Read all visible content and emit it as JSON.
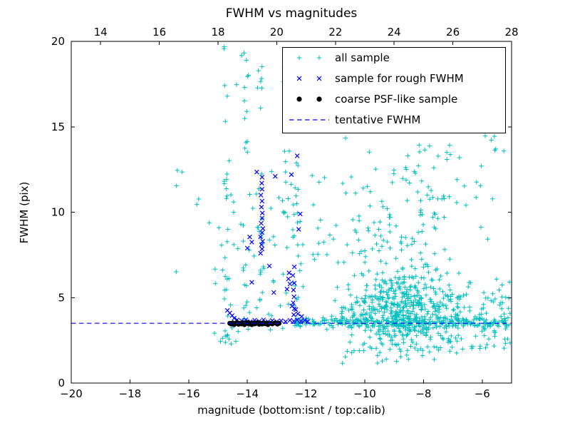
{
  "figure": {
    "title": "FWHM vs magnitudes",
    "xlabel": "magnitude (bottom:isnt / top:calib)",
    "ylabel": "FWHM (pix)"
  },
  "chart_data": {
    "type": "scatter",
    "title": "FWHM vs magnitudes",
    "xlabel": "magnitude (bottom:isnt / top:calib)",
    "ylabel": "FWHM (pix)",
    "xlim": [
      -20,
      -5
    ],
    "ylim": [
      0,
      20
    ],
    "top_xlim": [
      13,
      28
    ],
    "xticks": [
      -20,
      -18,
      -16,
      -14,
      -12,
      -10,
      -8,
      -6
    ],
    "top_xticks": [
      14,
      16,
      18,
      20,
      22,
      24,
      26,
      28
    ],
    "yticks": [
      0,
      5,
      10,
      15,
      20
    ],
    "grid": false,
    "tentative_fwhm": 3.5,
    "legend": {
      "position": "upper right",
      "entries": [
        {
          "label": "all sample",
          "marker": "plus",
          "color": "#00bfbf"
        },
        {
          "label": "sample for rough FWHM",
          "marker": "x",
          "color": "#0000ff"
        },
        {
          "label": "coarse PSF-like sample",
          "marker": "dot",
          "color": "#000000"
        },
        {
          "label": "tentative FWHM",
          "marker": "dashed-line",
          "color": "#0000ff"
        }
      ]
    },
    "lines": [
      {
        "name": "tentative FWHM",
        "style": "dashed",
        "color": "#0000ff",
        "y": 3.5
      }
    ],
    "series": [
      {
        "name": "all sample",
        "marker": "plus",
        "color": "#00bfbf",
        "clusters": [
          {
            "n": 500,
            "x": {
              "type": "gauss",
              "mu": -8.8,
              "sd": 1.0,
              "min": -11.4,
              "max": -6.1
            },
            "y": {
              "type": "gauss",
              "mu": 4.3,
              "sd": 1.2,
              "min": 1.3,
              "max": 9.8
            }
          },
          {
            "n": 240,
            "x": {
              "type": "uniform",
              "min": -12.4,
              "max": -5.05
            },
            "y": {
              "type": "gauss",
              "mu": 3.55,
              "sd": 0.15,
              "min": 3.2,
              "max": 4.0
            }
          },
          {
            "n": 120,
            "x": {
              "type": "gauss",
              "mu": -9.2,
              "sd": 1.3,
              "min": -11.9,
              "max": -6.3
            },
            "y": {
              "type": "gauss",
              "mu": 9.5,
              "sd": 2.3,
              "min": 7.0,
              "max": 16.8
            }
          },
          {
            "n": 70,
            "x": {
              "type": "uniform",
              "min": -15.15,
              "max": -12.1
            },
            "y": {
              "type": "gauss",
              "mu": 6.5,
              "sd": 3.2,
              "min": 2.0,
              "max": 15.5
            }
          },
          {
            "n": 20,
            "x": {
              "type": "gauss",
              "mu": -14.75,
              "sd": 0.05,
              "min": -14.9,
              "max": -14.6
            },
            "y": {
              "type": "uniform",
              "min": 2.6,
              "max": 19.6
            }
          },
          {
            "n": 12,
            "x": {
              "type": "gauss",
              "mu": -14.05,
              "sd": 0.06,
              "min": -14.2,
              "max": -13.9
            },
            "y": {
              "type": "uniform",
              "min": 3.2,
              "max": 17.5
            }
          },
          {
            "n": 16,
            "x": {
              "type": "gauss",
              "mu": -13.55,
              "sd": 0.05,
              "min": -13.68,
              "max": -13.42
            },
            "y": {
              "type": "uniform",
              "min": 4.0,
              "max": 19.4
            }
          },
          {
            "n": 14,
            "x": {
              "type": "gauss",
              "mu": -12.68,
              "sd": 0.06,
              "min": -12.82,
              "max": -12.54
            },
            "y": {
              "type": "uniform",
              "min": 3.8,
              "max": 19.2
            }
          },
          {
            "n": 18,
            "x": {
              "type": "gauss",
              "mu": -12.35,
              "sd": 0.07,
              "min": -12.5,
              "max": -12.2
            },
            "y": {
              "type": "uniform",
              "min": 3.8,
              "max": 13.5
            }
          },
          {
            "n": 7,
            "x": {
              "type": "uniform",
              "min": -16.6,
              "max": -15.2
            },
            "y": {
              "type": "uniform",
              "min": 6.5,
              "max": 15.5
            }
          },
          {
            "n": 9,
            "x": {
              "type": "uniform",
              "min": -15.3,
              "max": -13.1
            },
            "y": {
              "type": "uniform",
              "min": 16.2,
              "max": 19.7
            }
          },
          {
            "n": 120,
            "x": {
              "type": "uniform",
              "min": -7.6,
              "max": -5.05
            },
            "y": {
              "type": "gauss",
              "mu": 3.8,
              "sd": 1.1,
              "min": 1.7,
              "max": 8.2
            }
          },
          {
            "n": 28,
            "x": {
              "type": "uniform",
              "min": -8.2,
              "max": -5.2
            },
            "y": {
              "type": "uniform",
              "min": 8.4,
              "max": 14.6
            }
          },
          {
            "n": 26,
            "x": {
              "type": "uniform",
              "min": -10.8,
              "max": -6.0
            },
            "y": {
              "type": "uniform",
              "min": 1.1,
              "max": 2.3
            }
          },
          {
            "n": 12,
            "x": {
              "type": "uniform",
              "min": -10.9,
              "max": -8.1
            },
            "y": {
              "type": "uniform",
              "min": 15.8,
              "max": 19.7
            }
          },
          {
            "n": 7,
            "x": {
              "type": "uniform",
              "min": -15.05,
              "max": -14.2
            },
            "y": {
              "type": "uniform",
              "min": 2.2,
              "max": 3.3
            }
          }
        ]
      },
      {
        "name": "sample for rough FWHM",
        "marker": "x",
        "color": "#0000ff",
        "points": [
          [
            -13.55,
            7.6
          ],
          [
            -13.5,
            7.85
          ],
          [
            -13.52,
            8.1
          ],
          [
            -13.48,
            8.3
          ],
          [
            -13.55,
            8.55
          ],
          [
            -13.5,
            8.8
          ],
          [
            -13.47,
            9.05
          ],
          [
            -13.53,
            9.35
          ],
          [
            -13.5,
            9.65
          ],
          [
            -13.49,
            9.95
          ],
          [
            -13.52,
            10.3
          ],
          [
            -13.5,
            10.65
          ],
          [
            -13.54,
            11.0
          ],
          [
            -13.5,
            11.35
          ],
          [
            -13.51,
            11.7
          ],
          [
            -13.5,
            12.05
          ],
          [
            -13.68,
            12.35
          ],
          [
            -13.92,
            8.55
          ],
          [
            -13.85,
            8.25
          ],
          [
            -14.0,
            7.9
          ],
          [
            -12.42,
            4.0
          ],
          [
            -12.4,
            4.35
          ],
          [
            -12.44,
            4.7
          ],
          [
            -12.41,
            5.05
          ],
          [
            -12.43,
            5.45
          ],
          [
            -12.4,
            5.85
          ],
          [
            -12.45,
            6.3
          ],
          [
            -12.4,
            6.8
          ],
          [
            -12.6,
            6.1
          ],
          [
            -12.55,
            5.8
          ],
          [
            -12.65,
            5.5
          ],
          [
            -12.58,
            6.45
          ],
          [
            -12.3,
            13.3
          ],
          [
            -12.5,
            12.2
          ],
          [
            -13.05,
            12.1
          ],
          [
            -12.2,
            9.9
          ],
          [
            -12.25,
            9.0
          ],
          [
            -14.68,
            4.25
          ],
          [
            -14.6,
            4.1
          ],
          [
            -14.52,
            3.95
          ],
          [
            -14.45,
            3.8
          ],
          [
            -14.35,
            3.7
          ],
          [
            -14.2,
            3.65
          ],
          [
            -14.05,
            3.7
          ],
          [
            -13.9,
            3.6
          ],
          [
            -13.75,
            3.68
          ],
          [
            -13.6,
            3.62
          ],
          [
            -13.45,
            3.7
          ],
          [
            -13.3,
            3.6
          ],
          [
            -13.15,
            3.66
          ],
          [
            -13.0,
            3.6
          ],
          [
            -12.85,
            3.65
          ],
          [
            -12.7,
            3.6
          ],
          [
            -12.55,
            3.68
          ],
          [
            -12.42,
            3.62
          ],
          [
            -12.3,
            3.7
          ],
          [
            -12.18,
            3.62
          ],
          [
            -12.05,
            3.68
          ],
          [
            -11.95,
            3.6
          ],
          [
            -12.35,
            4.3
          ],
          [
            -12.28,
            4.05
          ],
          [
            -12.15,
            3.9
          ],
          [
            -12.48,
            4.5
          ],
          [
            -13.1,
            5.3
          ],
          [
            -13.85,
            5.9
          ],
          [
            -13.25,
            6.85
          ]
        ]
      },
      {
        "name": "coarse PSF-like sample",
        "marker": "dot",
        "color": "#000000",
        "points": [
          [
            -14.6,
            3.5
          ],
          [
            -14.55,
            3.45
          ],
          [
            -14.5,
            3.52
          ],
          [
            -14.45,
            3.42
          ],
          [
            -14.4,
            3.5
          ],
          [
            -14.35,
            3.55
          ],
          [
            -14.3,
            3.44
          ],
          [
            -14.25,
            3.5
          ],
          [
            -14.2,
            3.46
          ],
          [
            -14.15,
            3.53
          ],
          [
            -14.1,
            3.42
          ],
          [
            -14.05,
            3.5
          ],
          [
            -14.0,
            3.55
          ],
          [
            -13.95,
            3.45
          ],
          [
            -13.9,
            3.5
          ],
          [
            -13.85,
            3.42
          ],
          [
            -13.8,
            3.52
          ],
          [
            -13.75,
            3.46
          ],
          [
            -13.7,
            3.5
          ],
          [
            -13.65,
            3.55
          ],
          [
            -13.6,
            3.44
          ],
          [
            -13.55,
            3.5
          ],
          [
            -13.5,
            3.45
          ],
          [
            -13.45,
            3.52
          ],
          [
            -13.4,
            3.47
          ],
          [
            -13.35,
            3.5
          ],
          [
            -13.3,
            3.42
          ],
          [
            -13.22,
            3.5
          ],
          [
            -13.15,
            3.46
          ],
          [
            -13.05,
            3.52
          ],
          [
            -12.98,
            3.45
          ],
          [
            -12.92,
            3.5
          ]
        ]
      }
    ]
  }
}
